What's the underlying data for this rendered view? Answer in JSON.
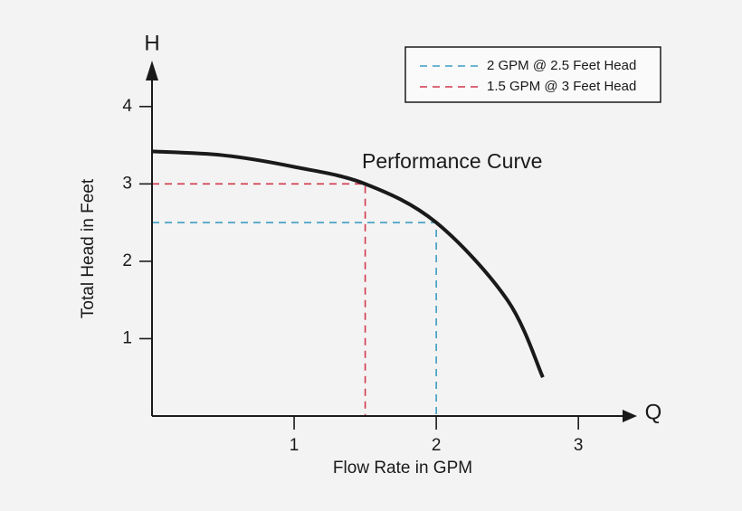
{
  "chart_data": {
    "type": "line",
    "x_label": "Flow Rate in GPM",
    "y_label": "Total Head in Feet",
    "x_axis_symbol": "Q",
    "y_axis_symbol": "H",
    "x": [
      0,
      0.5,
      1,
      1.5,
      2,
      2.5,
      2.75
    ],
    "series": [
      {
        "name": "Performance Curve",
        "color": "#1a1a1a",
        "values": [
          3.42,
          3.37,
          3.22,
          3.0,
          2.5,
          1.5,
          0.5
        ]
      }
    ],
    "reference_lines": [
      {
        "label": "2 GPM @ 2.5 Feet Head",
        "color": "#3d9cc2",
        "x": 2,
        "y": 2.5
      },
      {
        "label": "1.5 GPM @ 3 Feet Head",
        "color": "#d2384d",
        "x": 1.5,
        "y": 3
      }
    ],
    "xlim": [
      0,
      3.4
    ],
    "ylim": [
      0,
      4.5
    ],
    "xticks": [
      1,
      2,
      3
    ],
    "yticks": [
      1,
      2,
      3,
      4
    ]
  }
}
